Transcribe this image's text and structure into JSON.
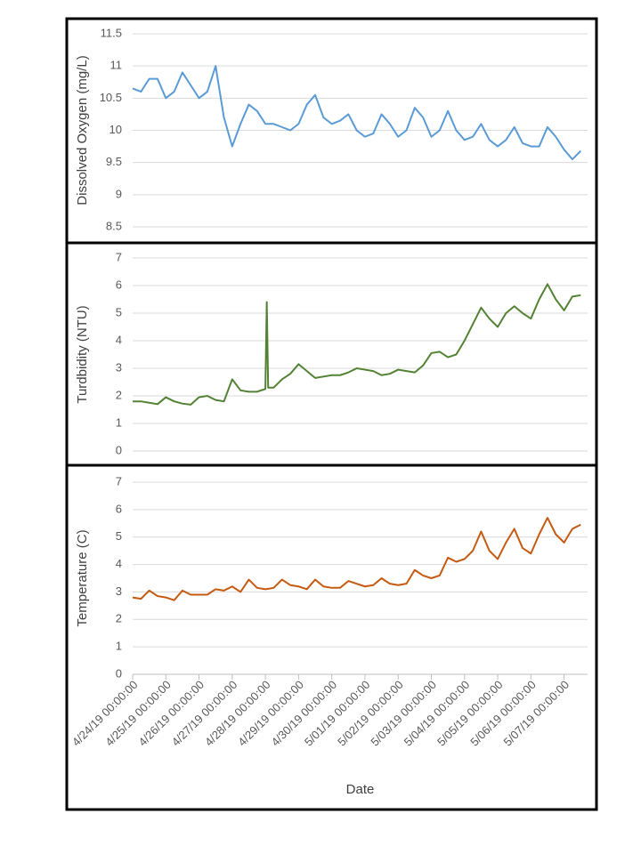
{
  "chart_data": [
    {
      "type": "line",
      "ylabel": "Dissolved Oxygen (mg/L)",
      "color": "#5b9bd5",
      "ylim": [
        8.5,
        11.5
      ],
      "yticks": [
        8.5,
        9,
        9.5,
        10,
        10.5,
        11,
        11.5
      ],
      "grid": true,
      "xlim": [
        "4/24/19 00:00:00",
        "5/07/19 17:00:00"
      ],
      "x": [
        "4/24/19 00:00:00",
        "4/24/19 06:00:00",
        "4/24/19 12:00:00",
        "4/24/19 18:00:00",
        "4/25/19 00:00:00",
        "4/25/19 06:00:00",
        "4/25/19 12:00:00",
        "4/25/19 18:00:00",
        "4/26/19 00:00:00",
        "4/26/19 06:00:00",
        "4/26/19 12:00:00",
        "4/26/19 18:00:00",
        "4/27/19 00:00:00",
        "4/27/19 06:00:00",
        "4/27/19 12:00:00",
        "4/27/19 18:00:00",
        "4/28/19 00:00:00",
        "4/28/19 06:00:00",
        "4/28/19 12:00:00",
        "4/28/19 18:00:00",
        "4/29/19 00:00:00",
        "4/29/19 06:00:00",
        "4/29/19 12:00:00",
        "4/29/19 18:00:00",
        "4/30/19 00:00:00",
        "4/30/19 06:00:00",
        "4/30/19 12:00:00",
        "4/30/19 18:00:00",
        "5/01/19 00:00:00",
        "5/01/19 06:00:00",
        "5/01/19 12:00:00",
        "5/01/19 18:00:00",
        "5/02/19 00:00:00",
        "5/02/19 06:00:00",
        "5/02/19 12:00:00",
        "5/02/19 18:00:00",
        "5/03/19 00:00:00",
        "5/03/19 06:00:00",
        "5/03/19 12:00:00",
        "5/03/19 18:00:00",
        "5/04/19 00:00:00",
        "5/04/19 06:00:00",
        "5/04/19 12:00:00",
        "5/04/19 18:00:00",
        "5/05/19 00:00:00",
        "5/05/19 06:00:00",
        "5/05/19 12:00:00",
        "5/05/19 18:00:00",
        "5/06/19 00:00:00",
        "5/06/19 06:00:00",
        "5/06/19 12:00:00",
        "5/06/19 18:00:00",
        "5/07/19 00:00:00",
        "5/07/19 06:00:00",
        "5/07/19 12:00:00"
      ],
      "values": [
        10.65,
        10.6,
        10.8,
        10.8,
        10.5,
        10.6,
        10.9,
        10.7,
        10.5,
        10.6,
        11.0,
        10.2,
        9.75,
        10.1,
        10.4,
        10.3,
        10.1,
        10.1,
        10.05,
        10.0,
        10.1,
        10.4,
        10.55,
        10.2,
        10.1,
        10.15,
        10.25,
        10.0,
        9.9,
        9.95,
        10.25,
        10.1,
        9.9,
        10.0,
        10.35,
        10.2,
        9.9,
        10.0,
        10.3,
        10.0,
        9.85,
        9.9,
        10.1,
        9.85,
        9.75,
        9.85,
        10.05,
        9.8,
        9.75,
        9.75,
        10.05,
        9.9,
        9.7,
        9.55,
        9.68
      ]
    },
    {
      "type": "line",
      "ylabel": "Turdbidity (NTU)",
      "color": "#548235",
      "ylim": [
        0,
        7
      ],
      "yticks": [
        0,
        1,
        2,
        3,
        4,
        5,
        6,
        7
      ],
      "grid": true,
      "xlim": [
        "4/24/19 00:00:00",
        "5/07/19 17:00:00"
      ],
      "x": [
        "4/24/19 00:00:00",
        "4/24/19 06:00:00",
        "4/24/19 12:00:00",
        "4/24/19 18:00:00",
        "4/25/19 00:00:00",
        "4/25/19 06:00:00",
        "4/25/19 12:00:00",
        "4/25/19 18:00:00",
        "4/26/19 00:00:00",
        "4/26/19 06:00:00",
        "4/26/19 12:00:00",
        "4/26/19 18:00:00",
        "4/27/19 00:00:00",
        "4/27/19 06:00:00",
        "4/27/19 12:00:00",
        "4/27/19 18:00:00",
        "4/28/19 00:00:00",
        "4/28/19 01:00:00",
        "4/28/19 02:00:00",
        "4/28/19 06:00:00",
        "4/28/19 12:00:00",
        "4/28/19 18:00:00",
        "4/29/19 00:00:00",
        "4/29/19 06:00:00",
        "4/29/19 12:00:00",
        "4/29/19 18:00:00",
        "4/30/19 00:00:00",
        "4/30/19 06:00:00",
        "4/30/19 12:00:00",
        "4/30/19 18:00:00",
        "5/01/19 00:00:00",
        "5/01/19 06:00:00",
        "5/01/19 12:00:00",
        "5/01/19 18:00:00",
        "5/02/19 00:00:00",
        "5/02/19 06:00:00",
        "5/02/19 12:00:00",
        "5/02/19 18:00:00",
        "5/03/19 00:00:00",
        "5/03/19 06:00:00",
        "5/03/19 12:00:00",
        "5/03/19 18:00:00",
        "5/04/19 00:00:00",
        "5/04/19 06:00:00",
        "5/04/19 12:00:00",
        "5/04/19 18:00:00",
        "5/05/19 00:00:00",
        "5/05/19 06:00:00",
        "5/05/19 12:00:00",
        "5/05/19 18:00:00",
        "5/06/19 00:00:00",
        "5/06/19 06:00:00",
        "5/06/19 12:00:00",
        "5/06/19 18:00:00",
        "5/07/19 00:00:00",
        "5/07/19 06:00:00",
        "5/07/19 12:00:00"
      ],
      "values": [
        1.8,
        1.8,
        1.75,
        1.7,
        1.95,
        1.8,
        1.72,
        1.68,
        1.95,
        2.0,
        1.85,
        1.8,
        2.6,
        2.2,
        2.15,
        2.15,
        2.25,
        5.4,
        2.3,
        2.3,
        2.6,
        2.8,
        3.15,
        2.9,
        2.65,
        2.7,
        2.75,
        2.75,
        2.85,
        3.0,
        2.95,
        2.9,
        2.75,
        2.8,
        2.95,
        2.9,
        2.85,
        3.1,
        3.55,
        3.6,
        3.4,
        3.5,
        4.0,
        4.6,
        5.2,
        4.8,
        4.5,
        5.0,
        5.25,
        5.0,
        4.8,
        5.5,
        6.05,
        5.5,
        5.1,
        5.6,
        5.65
      ]
    },
    {
      "type": "line",
      "ylabel": "Temperature (C)",
      "xlabel": "Date",
      "color": "#c55a11",
      "ylim": [
        0,
        7
      ],
      "yticks": [
        0,
        1,
        2,
        3,
        4,
        5,
        6,
        7
      ],
      "grid": true,
      "xlim": [
        "4/24/19 00:00:00",
        "5/07/19 17:00:00"
      ],
      "xticks": [
        "4/24/19 00:00:00",
        "4/25/19 00:00:00",
        "4/26/19 00:00:00",
        "4/27/19 00:00:00",
        "4/28/19 00:00:00",
        "4/29/19 00:00:00",
        "4/30/19 00:00:00",
        "5/01/19 00:00:00",
        "5/02/19 00:00:00",
        "5/03/19 00:00:00",
        "5/04/19 00:00:00",
        "5/05/19 00:00:00",
        "5/06/19 00:00:00",
        "5/07/19 00:00:00"
      ],
      "x": [
        "4/24/19 00:00:00",
        "4/24/19 06:00:00",
        "4/24/19 12:00:00",
        "4/24/19 18:00:00",
        "4/25/19 00:00:00",
        "4/25/19 06:00:00",
        "4/25/19 12:00:00",
        "4/25/19 18:00:00",
        "4/26/19 00:00:00",
        "4/26/19 06:00:00",
        "4/26/19 12:00:00",
        "4/26/19 18:00:00",
        "4/27/19 00:00:00",
        "4/27/19 06:00:00",
        "4/27/19 12:00:00",
        "4/27/19 18:00:00",
        "4/28/19 00:00:00",
        "4/28/19 06:00:00",
        "4/28/19 12:00:00",
        "4/28/19 18:00:00",
        "4/29/19 00:00:00",
        "4/29/19 06:00:00",
        "4/29/19 12:00:00",
        "4/29/19 18:00:00",
        "4/30/19 00:00:00",
        "4/30/19 06:00:00",
        "4/30/19 12:00:00",
        "4/30/19 18:00:00",
        "5/01/19 00:00:00",
        "5/01/19 06:00:00",
        "5/01/19 12:00:00",
        "5/01/19 18:00:00",
        "5/02/19 00:00:00",
        "5/02/19 06:00:00",
        "5/02/19 12:00:00",
        "5/02/19 18:00:00",
        "5/03/19 00:00:00",
        "5/03/19 06:00:00",
        "5/03/19 12:00:00",
        "5/03/19 18:00:00",
        "5/04/19 00:00:00",
        "5/04/19 06:00:00",
        "5/04/19 12:00:00",
        "5/04/19 18:00:00",
        "5/05/19 00:00:00",
        "5/05/19 06:00:00",
        "5/05/19 12:00:00",
        "5/05/19 18:00:00",
        "5/06/19 00:00:00",
        "5/06/19 06:00:00",
        "5/06/19 12:00:00",
        "5/06/19 18:00:00",
        "5/07/19 00:00:00",
        "5/07/19 06:00:00",
        "5/07/19 12:00:00"
      ],
      "values": [
        2.8,
        2.75,
        3.05,
        2.85,
        2.8,
        2.7,
        3.05,
        2.9,
        2.9,
        2.9,
        3.1,
        3.05,
        3.2,
        3.0,
        3.45,
        3.15,
        3.1,
        3.15,
        3.45,
        3.25,
        3.2,
        3.1,
        3.45,
        3.2,
        3.15,
        3.15,
        3.4,
        3.3,
        3.2,
        3.25,
        3.5,
        3.3,
        3.25,
        3.3,
        3.8,
        3.6,
        3.5,
        3.6,
        4.25,
        4.1,
        4.2,
        4.5,
        5.2,
        4.5,
        4.2,
        4.8,
        5.3,
        4.6,
        4.4,
        5.1,
        5.7,
        5.1,
        4.8,
        5.3,
        5.45
      ]
    }
  ]
}
